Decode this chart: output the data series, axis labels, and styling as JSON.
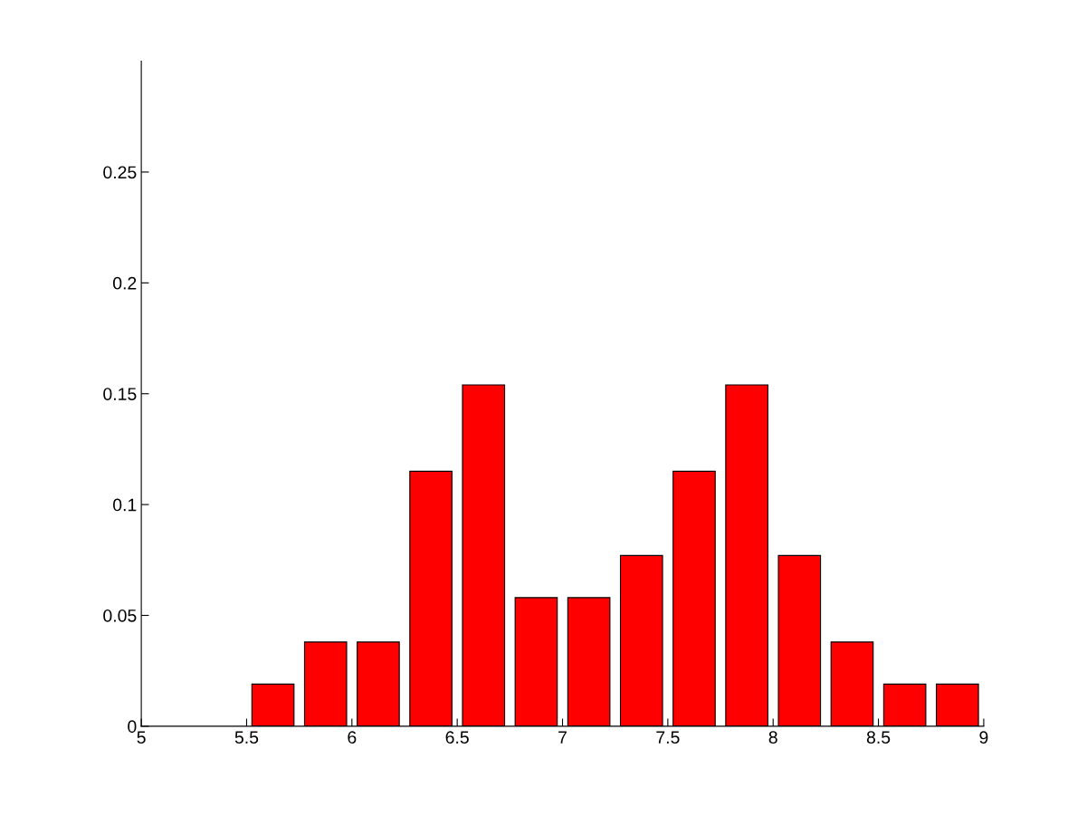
{
  "chart_data": {
    "type": "bar",
    "x": [
      5.625,
      5.875,
      6.125,
      6.375,
      6.625,
      6.875,
      7.125,
      7.375,
      7.625,
      7.875,
      8.125,
      8.375,
      8.625,
      8.875
    ],
    "values": [
      0.019,
      0.038,
      0.038,
      0.115,
      0.154,
      0.058,
      0.058,
      0.077,
      0.115,
      0.154,
      0.077,
      0.038,
      0.019,
      0.019
    ],
    "color": "#ff0000",
    "xlim": [
      5,
      9
    ],
    "xticks": [
      5,
      5.5,
      6,
      6.5,
      7,
      7.5,
      8,
      8.5,
      9
    ],
    "ylim": [
      0,
      0.3
    ],
    "yticks": [
      0,
      0.05,
      0.1,
      0.15,
      0.2,
      0.25
    ],
    "grid": false,
    "legend": false
  }
}
